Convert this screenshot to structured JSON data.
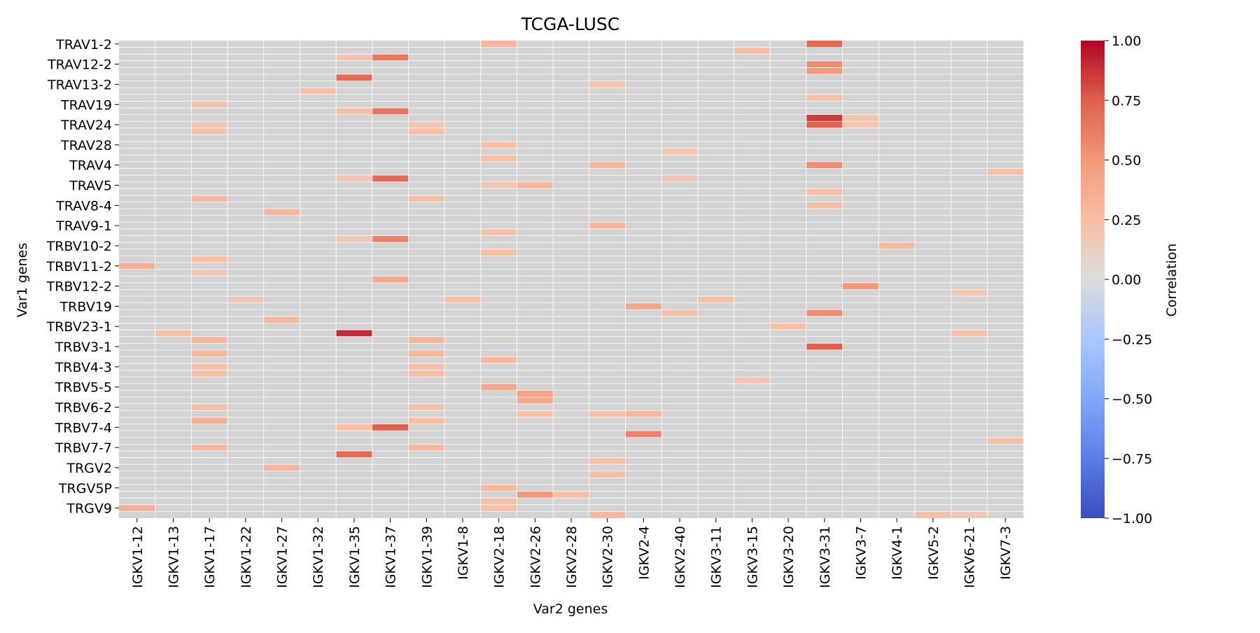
{
  "chart_data": {
    "type": "heatmap",
    "title": "TCGA-LUSC",
    "xlabel": "Var2 genes",
    "ylabel": "Var1 genes",
    "colorbar": {
      "label": "Correlation",
      "range": [
        -1.0,
        1.0
      ],
      "ticks": [
        "1.00",
        "0.75",
        "0.50",
        "0.25",
        "0.00",
        "−0.25",
        "−0.50",
        "−0.75",
        "−1.00"
      ],
      "tick_values": [
        1.0,
        0.75,
        0.5,
        0.25,
        0.0,
        -0.25,
        -0.5,
        -0.75,
        -1.0
      ],
      "colormap": "coolwarm"
    },
    "missing_color": "#d3d3d3",
    "grid_line_color": "#ffffff",
    "x_categories": [
      "IGKV1-12",
      "IGKV1-13",
      "IGKV1-17",
      "IGKV1-22",
      "IGKV1-27",
      "IGKV1-32",
      "IGKV1-35",
      "IGKV1-37",
      "IGKV1-39",
      "IGKV1-8",
      "IGKV2-18",
      "IGKV2-26",
      "IGKV2-28",
      "IGKV2-30",
      "IGKV2-4",
      "IGKV2-40",
      "IGKV3-11",
      "IGKV3-15",
      "IGKV3-20",
      "IGKV3-31",
      "IGKV3-7",
      "IGKV4-1",
      "IGKV5-2",
      "IGKV6-21",
      "IGKV7-3"
    ],
    "y_tick_labels": [
      "TRAV1-2",
      "TRAV12-2",
      "TRAV13-2",
      "TRAV19",
      "TRAV24",
      "TRAV28",
      "TRAV4",
      "TRAV5",
      "TRAV8-4",
      "TRAV9-1",
      "TRBV10-2",
      "TRBV11-2",
      "TRBV12-2",
      "TRBV19",
      "TRBV23-1",
      "TRBV3-1",
      "TRBV4-3",
      "TRBV5-5",
      "TRBV6-2",
      "TRBV7-4",
      "TRBV7-7",
      "TRGV2",
      "TRGV5P",
      "TRGV9"
    ],
    "y_tick_rows": [
      0,
      3,
      6,
      9,
      12,
      15,
      18,
      21,
      24,
      27,
      30,
      33,
      36,
      39,
      42,
      45,
      48,
      51,
      54,
      57,
      60,
      63,
      66,
      69
    ],
    "n_rows": 71,
    "cells": [
      [
        0,
        10,
        0.3
      ],
      [
        0,
        19,
        0.7
      ],
      [
        1,
        17,
        0.25
      ],
      [
        2,
        6,
        0.2
      ],
      [
        2,
        7,
        0.65
      ],
      [
        3,
        19,
        0.55
      ],
      [
        4,
        19,
        0.5
      ],
      [
        5,
        6,
        0.7
      ],
      [
        6,
        13,
        0.2
      ],
      [
        7,
        5,
        0.22
      ],
      [
        8,
        19,
        0.25
      ],
      [
        9,
        2,
        0.22
      ],
      [
        10,
        6,
        0.25
      ],
      [
        10,
        7,
        0.65
      ],
      [
        11,
        19,
        0.85
      ],
      [
        11,
        20,
        0.2
      ],
      [
        12,
        2,
        0.2
      ],
      [
        12,
        8,
        0.2
      ],
      [
        12,
        19,
        0.75
      ],
      [
        12,
        20,
        0.2
      ],
      [
        13,
        2,
        0.22
      ],
      [
        13,
        8,
        0.25
      ],
      [
        15,
        10,
        0.25
      ],
      [
        16,
        15,
        0.2
      ],
      [
        17,
        10,
        0.25
      ],
      [
        18,
        13,
        0.3
      ],
      [
        18,
        19,
        0.55
      ],
      [
        19,
        24,
        0.25
      ],
      [
        20,
        6,
        0.2
      ],
      [
        20,
        7,
        0.7
      ],
      [
        20,
        15,
        0.2
      ],
      [
        21,
        10,
        0.2
      ],
      [
        21,
        11,
        0.3
      ],
      [
        22,
        19,
        0.25
      ],
      [
        23,
        2,
        0.3
      ],
      [
        23,
        8,
        0.25
      ],
      [
        24,
        19,
        0.25
      ],
      [
        25,
        4,
        0.3
      ],
      [
        27,
        13,
        0.3
      ],
      [
        28,
        10,
        0.25
      ],
      [
        29,
        6,
        0.2
      ],
      [
        29,
        7,
        0.6
      ],
      [
        30,
        21,
        0.3
      ],
      [
        31,
        10,
        0.25
      ],
      [
        32,
        2,
        0.25
      ],
      [
        33,
        0,
        0.35
      ],
      [
        34,
        2,
        0.2
      ],
      [
        35,
        7,
        0.4
      ],
      [
        36,
        20,
        0.5
      ],
      [
        37,
        23,
        0.2
      ],
      [
        38,
        3,
        0.2
      ],
      [
        38,
        9,
        0.25
      ],
      [
        38,
        16,
        0.25
      ],
      [
        39,
        14,
        0.4
      ],
      [
        40,
        15,
        0.25
      ],
      [
        40,
        19,
        0.55
      ],
      [
        41,
        4,
        0.3
      ],
      [
        42,
        18,
        0.25
      ],
      [
        43,
        1,
        0.25
      ],
      [
        43,
        6,
        0.9
      ],
      [
        43,
        23,
        0.25
      ],
      [
        44,
        2,
        0.3
      ],
      [
        44,
        8,
        0.3
      ],
      [
        45,
        19,
        0.75
      ],
      [
        46,
        2,
        0.3
      ],
      [
        46,
        8,
        0.3
      ],
      [
        47,
        10,
        0.3
      ],
      [
        48,
        2,
        0.25
      ],
      [
        48,
        8,
        0.25
      ],
      [
        49,
        2,
        0.25
      ],
      [
        49,
        8,
        0.25
      ],
      [
        50,
        17,
        0.2
      ],
      [
        51,
        10,
        0.4
      ],
      [
        52,
        11,
        0.45
      ],
      [
        53,
        11,
        0.4
      ],
      [
        54,
        2,
        0.25
      ],
      [
        54,
        8,
        0.22
      ],
      [
        55,
        11,
        0.25
      ],
      [
        55,
        13,
        0.25
      ],
      [
        55,
        14,
        0.3
      ],
      [
        56,
        2,
        0.35
      ],
      [
        56,
        8,
        0.25
      ],
      [
        57,
        6,
        0.25
      ],
      [
        57,
        7,
        0.75
      ],
      [
        58,
        14,
        0.6
      ],
      [
        59,
        24,
        0.25
      ],
      [
        60,
        2,
        0.3
      ],
      [
        60,
        8,
        0.3
      ],
      [
        61,
        6,
        0.7
      ],
      [
        62,
        13,
        0.22
      ],
      [
        63,
        4,
        0.3
      ],
      [
        64,
        13,
        0.25
      ],
      [
        66,
        10,
        0.3
      ],
      [
        67,
        11,
        0.5
      ],
      [
        67,
        12,
        0.25
      ],
      [
        68,
        10,
        0.25
      ],
      [
        69,
        10,
        0.25
      ],
      [
        69,
        0,
        0.35
      ],
      [
        70,
        13,
        0.3
      ],
      [
        70,
        22,
        0.25
      ],
      [
        70,
        23,
        0.2
      ]
    ]
  }
}
